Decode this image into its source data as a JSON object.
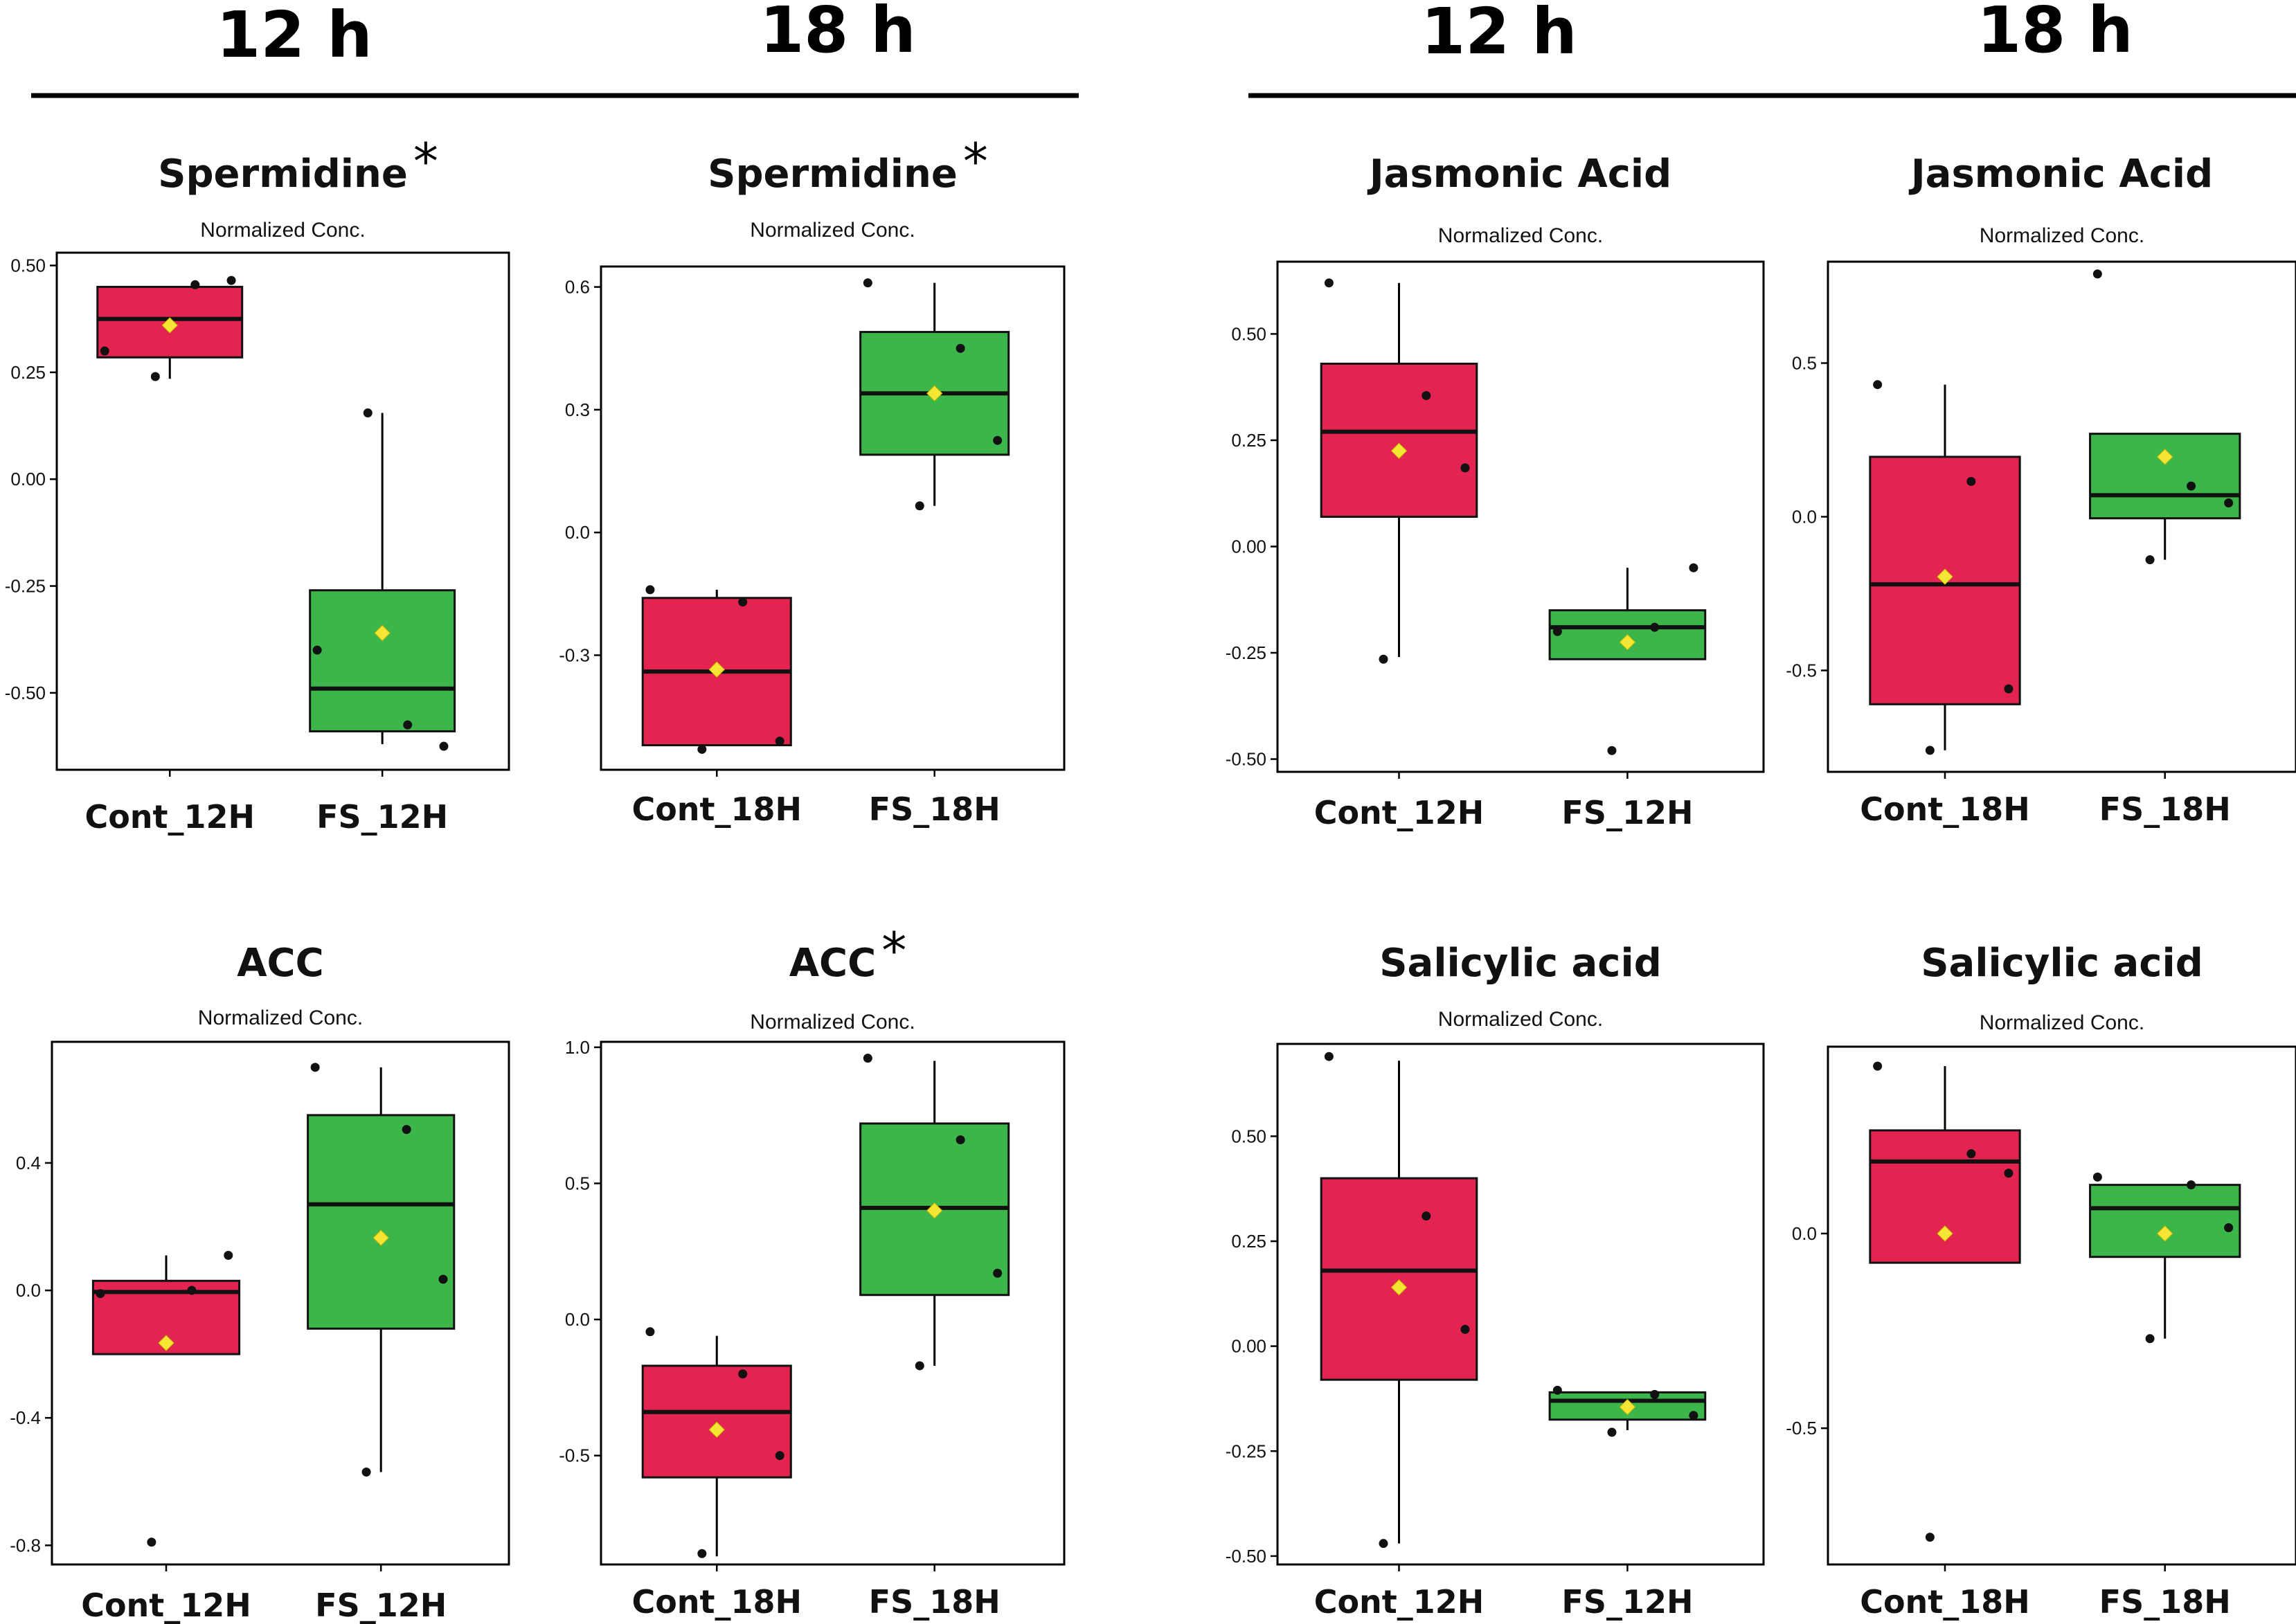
{
  "headers": [
    "12 h",
    "18 h",
    "12 h",
    "18 h"
  ],
  "axis_subtitle": "Normalized Conc.",
  "colors": {
    "control": "#e32350",
    "treatment": "#3cb64a",
    "mean": "#f5e636",
    "point": "#111111",
    "frame": "#000000"
  },
  "chart_data": [
    {
      "type": "box",
      "title": "Spermidine",
      "significant": true,
      "ylim": [
        -0.68,
        0.53
      ],
      "yticks": [
        0.5,
        0.25,
        0.0,
        -0.25,
        -0.5
      ],
      "tick_labels": [
        "0.50",
        "0.25",
        "0.00",
        "-0.25",
        "-0.50"
      ],
      "groups": [
        {
          "name": "Cont_12H",
          "q1": 0.285,
          "median": 0.375,
          "q3": 0.45,
          "whisker_low": 0.235,
          "whisker_high": 0.45,
          "mean": 0.36,
          "points": [
            0.3,
            0.455,
            0.465,
            0.24
          ]
        },
        {
          "name": "FS_12H",
          "q1": -0.59,
          "median": -0.49,
          "q3": -0.26,
          "whisker_low": -0.62,
          "whisker_high": 0.155,
          "mean": -0.36,
          "points": [
            -0.4,
            -0.575,
            -0.625,
            0.155
          ]
        }
      ]
    },
    {
      "type": "box",
      "title": "Spermidine",
      "significant": true,
      "ylim": [
        -0.58,
        0.65
      ],
      "yticks": [
        0.6,
        0.3,
        0.0,
        -0.3
      ],
      "tick_labels": [
        "0.6",
        "0.3",
        "0.0",
        "-0.3"
      ],
      "groups": [
        {
          "name": "Cont_18H",
          "q1": -0.52,
          "median": -0.34,
          "q3": -0.16,
          "whisker_low": -0.52,
          "whisker_high": -0.14,
          "mean": -0.335,
          "points": [
            -0.14,
            -0.17,
            -0.51,
            -0.53
          ]
        },
        {
          "name": "FS_18H",
          "q1": 0.19,
          "median": 0.34,
          "q3": 0.49,
          "whisker_low": 0.065,
          "whisker_high": 0.61,
          "mean": 0.34,
          "points": [
            0.61,
            0.45,
            0.225,
            0.065
          ]
        }
      ]
    },
    {
      "type": "box",
      "title": "Jasmonic Acid",
      "significant": false,
      "ylim": [
        -0.53,
        0.67
      ],
      "yticks": [
        0.5,
        0.25,
        0.0,
        -0.25,
        -0.5
      ],
      "tick_labels": [
        "0.50",
        "0.25",
        "0.00",
        "-0.25",
        "-0.50"
      ],
      "groups": [
        {
          "name": "Cont_12H",
          "q1": 0.07,
          "median": 0.27,
          "q3": 0.43,
          "whisker_low": -0.26,
          "whisker_high": 0.62,
          "mean": 0.225,
          "points": [
            0.62,
            0.355,
            0.185,
            -0.265
          ]
        },
        {
          "name": "FS_12H",
          "q1": -0.265,
          "median": -0.19,
          "q3": -0.15,
          "whisker_low": -0.265,
          "whisker_high": -0.05,
          "mean": -0.225,
          "points": [
            -0.2,
            -0.19,
            -0.05,
            -0.48
          ]
        }
      ]
    },
    {
      "type": "box",
      "title": "Jasmonic Acid",
      "significant": false,
      "ylim": [
        -0.83,
        0.83
      ],
      "yticks": [
        0.5,
        0.0,
        -0.5
      ],
      "tick_labels": [
        "0.5",
        "0.0",
        "-0.5"
      ],
      "groups": [
        {
          "name": "Cont_18H",
          "q1": -0.61,
          "median": -0.22,
          "q3": 0.195,
          "whisker_low": -0.76,
          "whisker_high": 0.43,
          "mean": -0.195,
          "points": [
            0.43,
            0.115,
            -0.56,
            -0.76
          ]
        },
        {
          "name": "FS_18H",
          "q1": -0.005,
          "median": 0.07,
          "q3": 0.27,
          "whisker_low": -0.14,
          "whisker_high": 0.27,
          "mean": 0.195,
          "points": [
            0.79,
            0.1,
            0.045,
            -0.14
          ]
        }
      ]
    },
    {
      "type": "box",
      "title": "ACC",
      "significant": false,
      "ylim": [
        -0.86,
        0.78
      ],
      "yticks": [
        0.4,
        0.0,
        -0.4,
        -0.8
      ],
      "tick_labels": [
        "0.4",
        "0.0",
        "-0.4",
        "-0.8"
      ],
      "groups": [
        {
          "name": "Cont_12H",
          "q1": -0.2,
          "median": -0.005,
          "q3": 0.03,
          "whisker_low": -0.2,
          "whisker_high": 0.11,
          "mean": -0.165,
          "points": [
            -0.01,
            0.0,
            0.11,
            -0.79
          ]
        },
        {
          "name": "FS_12H",
          "q1": -0.12,
          "median": 0.27,
          "q3": 0.55,
          "whisker_low": -0.57,
          "whisker_high": 0.7,
          "mean": 0.165,
          "points": [
            0.7,
            0.505,
            0.035,
            -0.57
          ]
        }
      ]
    },
    {
      "type": "box",
      "title": "ACC",
      "significant": true,
      "ylim": [
        -0.9,
        1.02
      ],
      "yticks": [
        1.0,
        0.5,
        0.0,
        -0.5
      ],
      "tick_labels": [
        "1.0",
        "0.5",
        "0.0",
        "-0.5"
      ],
      "groups": [
        {
          "name": "Cont_18H",
          "q1": -0.58,
          "median": -0.34,
          "q3": -0.17,
          "whisker_low": -0.87,
          "whisker_high": -0.06,
          "mean": -0.405,
          "points": [
            -0.045,
            -0.2,
            -0.5,
            -0.86
          ]
        },
        {
          "name": "FS_18H",
          "q1": 0.09,
          "median": 0.41,
          "q3": 0.72,
          "whisker_low": -0.17,
          "whisker_high": 0.95,
          "mean": 0.4,
          "points": [
            0.96,
            0.66,
            0.17,
            -0.17
          ]
        }
      ]
    },
    {
      "type": "box",
      "title": "Salicylic acid",
      "significant": false,
      "ylim": [
        -0.52,
        0.72
      ],
      "yticks": [
        0.5,
        0.25,
        0.0,
        -0.25,
        -0.5
      ],
      "tick_labels": [
        "0.50",
        "0.25",
        "0.00",
        "-0.25",
        "-0.50"
      ],
      "groups": [
        {
          "name": "Cont_12H",
          "q1": -0.08,
          "median": 0.18,
          "q3": 0.4,
          "whisker_low": -0.47,
          "whisker_high": 0.68,
          "mean": 0.14,
          "points": [
            0.69,
            0.31,
            0.04,
            -0.47
          ]
        },
        {
          "name": "FS_12H",
          "q1": -0.175,
          "median": -0.13,
          "q3": -0.11,
          "whisker_low": -0.2,
          "whisker_high": -0.11,
          "mean": -0.145,
          "points": [
            -0.105,
            -0.115,
            -0.165,
            -0.205
          ]
        }
      ]
    },
    {
      "type": "box",
      "title": "Salicylic acid",
      "significant": false,
      "ylim": [
        -0.85,
        0.48
      ],
      "yticks": [
        0.0,
        -0.5
      ],
      "tick_labels": [
        "0.0",
        "-0.5"
      ],
      "groups": [
        {
          "name": "Cont_18H",
          "q1": -0.075,
          "median": 0.185,
          "q3": 0.265,
          "whisker_low": -0.075,
          "whisker_high": 0.43,
          "mean": 0.0,
          "points": [
            0.43,
            0.205,
            0.155,
            -0.78
          ]
        },
        {
          "name": "FS_18H",
          "q1": -0.06,
          "median": 0.065,
          "q3": 0.125,
          "whisker_low": -0.27,
          "whisker_high": 0.125,
          "mean": 0.0,
          "points": [
            0.145,
            0.125,
            0.015,
            -0.27
          ]
        }
      ]
    }
  ]
}
